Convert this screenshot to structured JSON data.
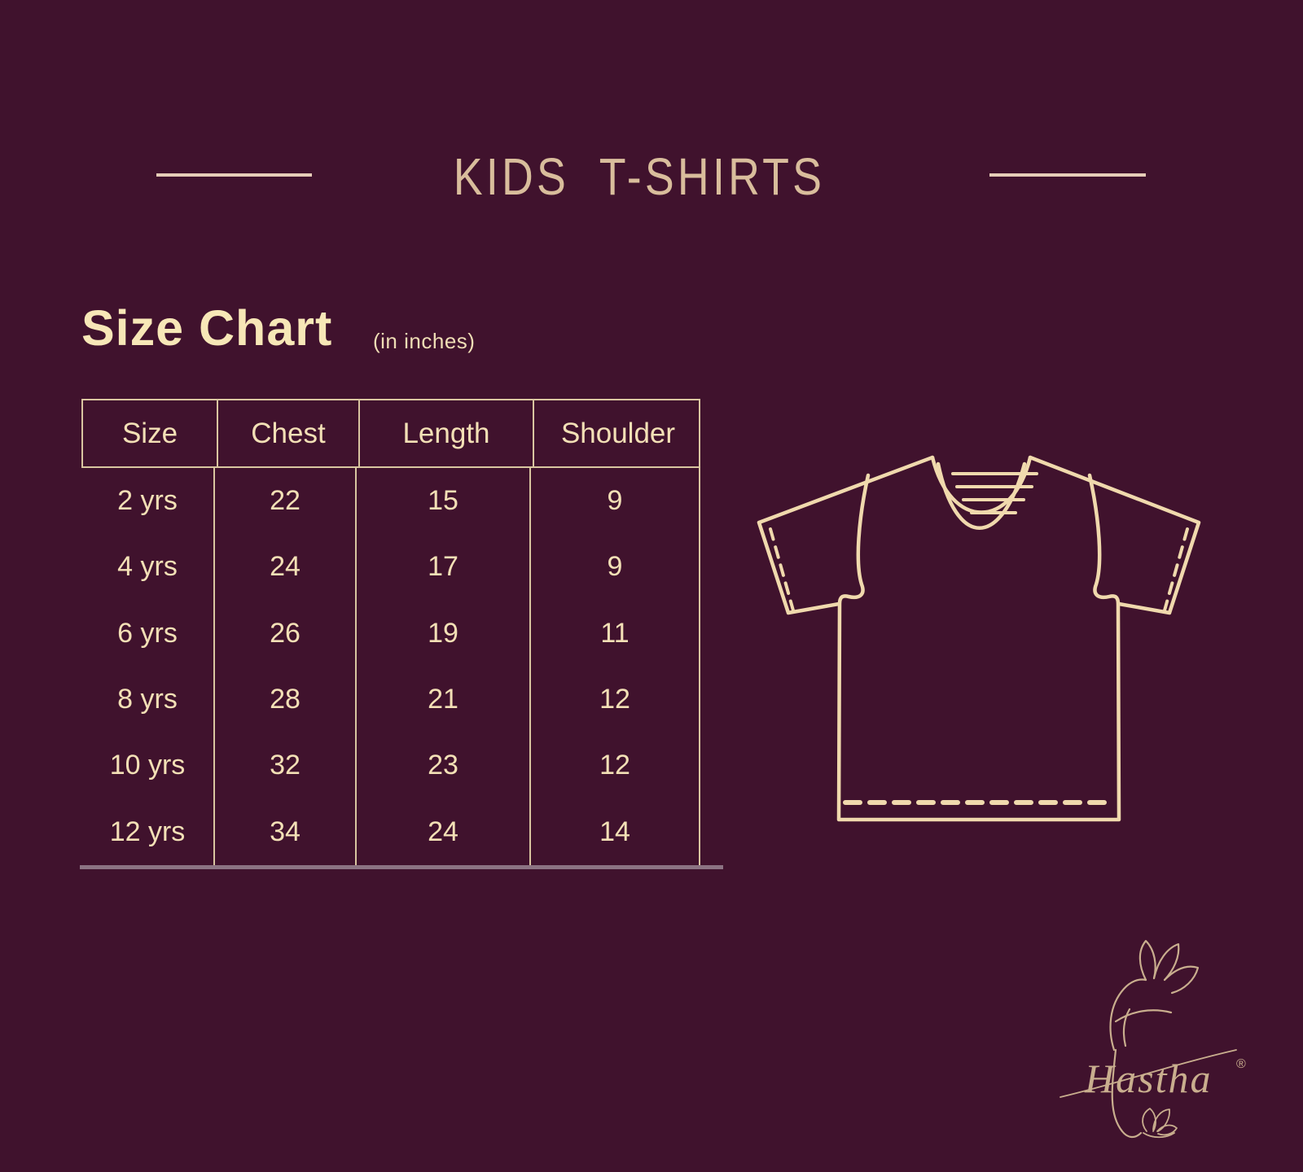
{
  "page": {
    "title_label": "KIDS T-SHIRTS"
  },
  "size_chart": {
    "heading": "Size Chart",
    "unit_note": "(in inches)"
  },
  "table": {
    "headers": [
      "Size",
      "Chest",
      "Length",
      "Shoulder"
    ],
    "rows": [
      [
        "2 yrs",
        "22",
        "15",
        "9"
      ],
      [
        "4 yrs",
        "24",
        "17",
        "9"
      ],
      [
        "6 yrs",
        "26",
        "19",
        "11"
      ],
      [
        "8 yrs",
        "28",
        "21",
        "12"
      ],
      [
        "10 yrs",
        "32",
        "23",
        "12"
      ],
      [
        "12 yrs",
        "34",
        "24",
        "14"
      ]
    ]
  },
  "brand": {
    "logo_text": "Hastha",
    "registered_mark": "®"
  },
  "colors": {
    "background": "#40122d",
    "title_text": "#d9bd9c",
    "heading_text": "#f7e7b7",
    "table_text": "#f3e0b6",
    "table_border": "#d9c5a0",
    "bottom_rule": "#8c7383",
    "tshirt_line": "#f0d9ad",
    "logo_line": "#c9ae8e"
  }
}
